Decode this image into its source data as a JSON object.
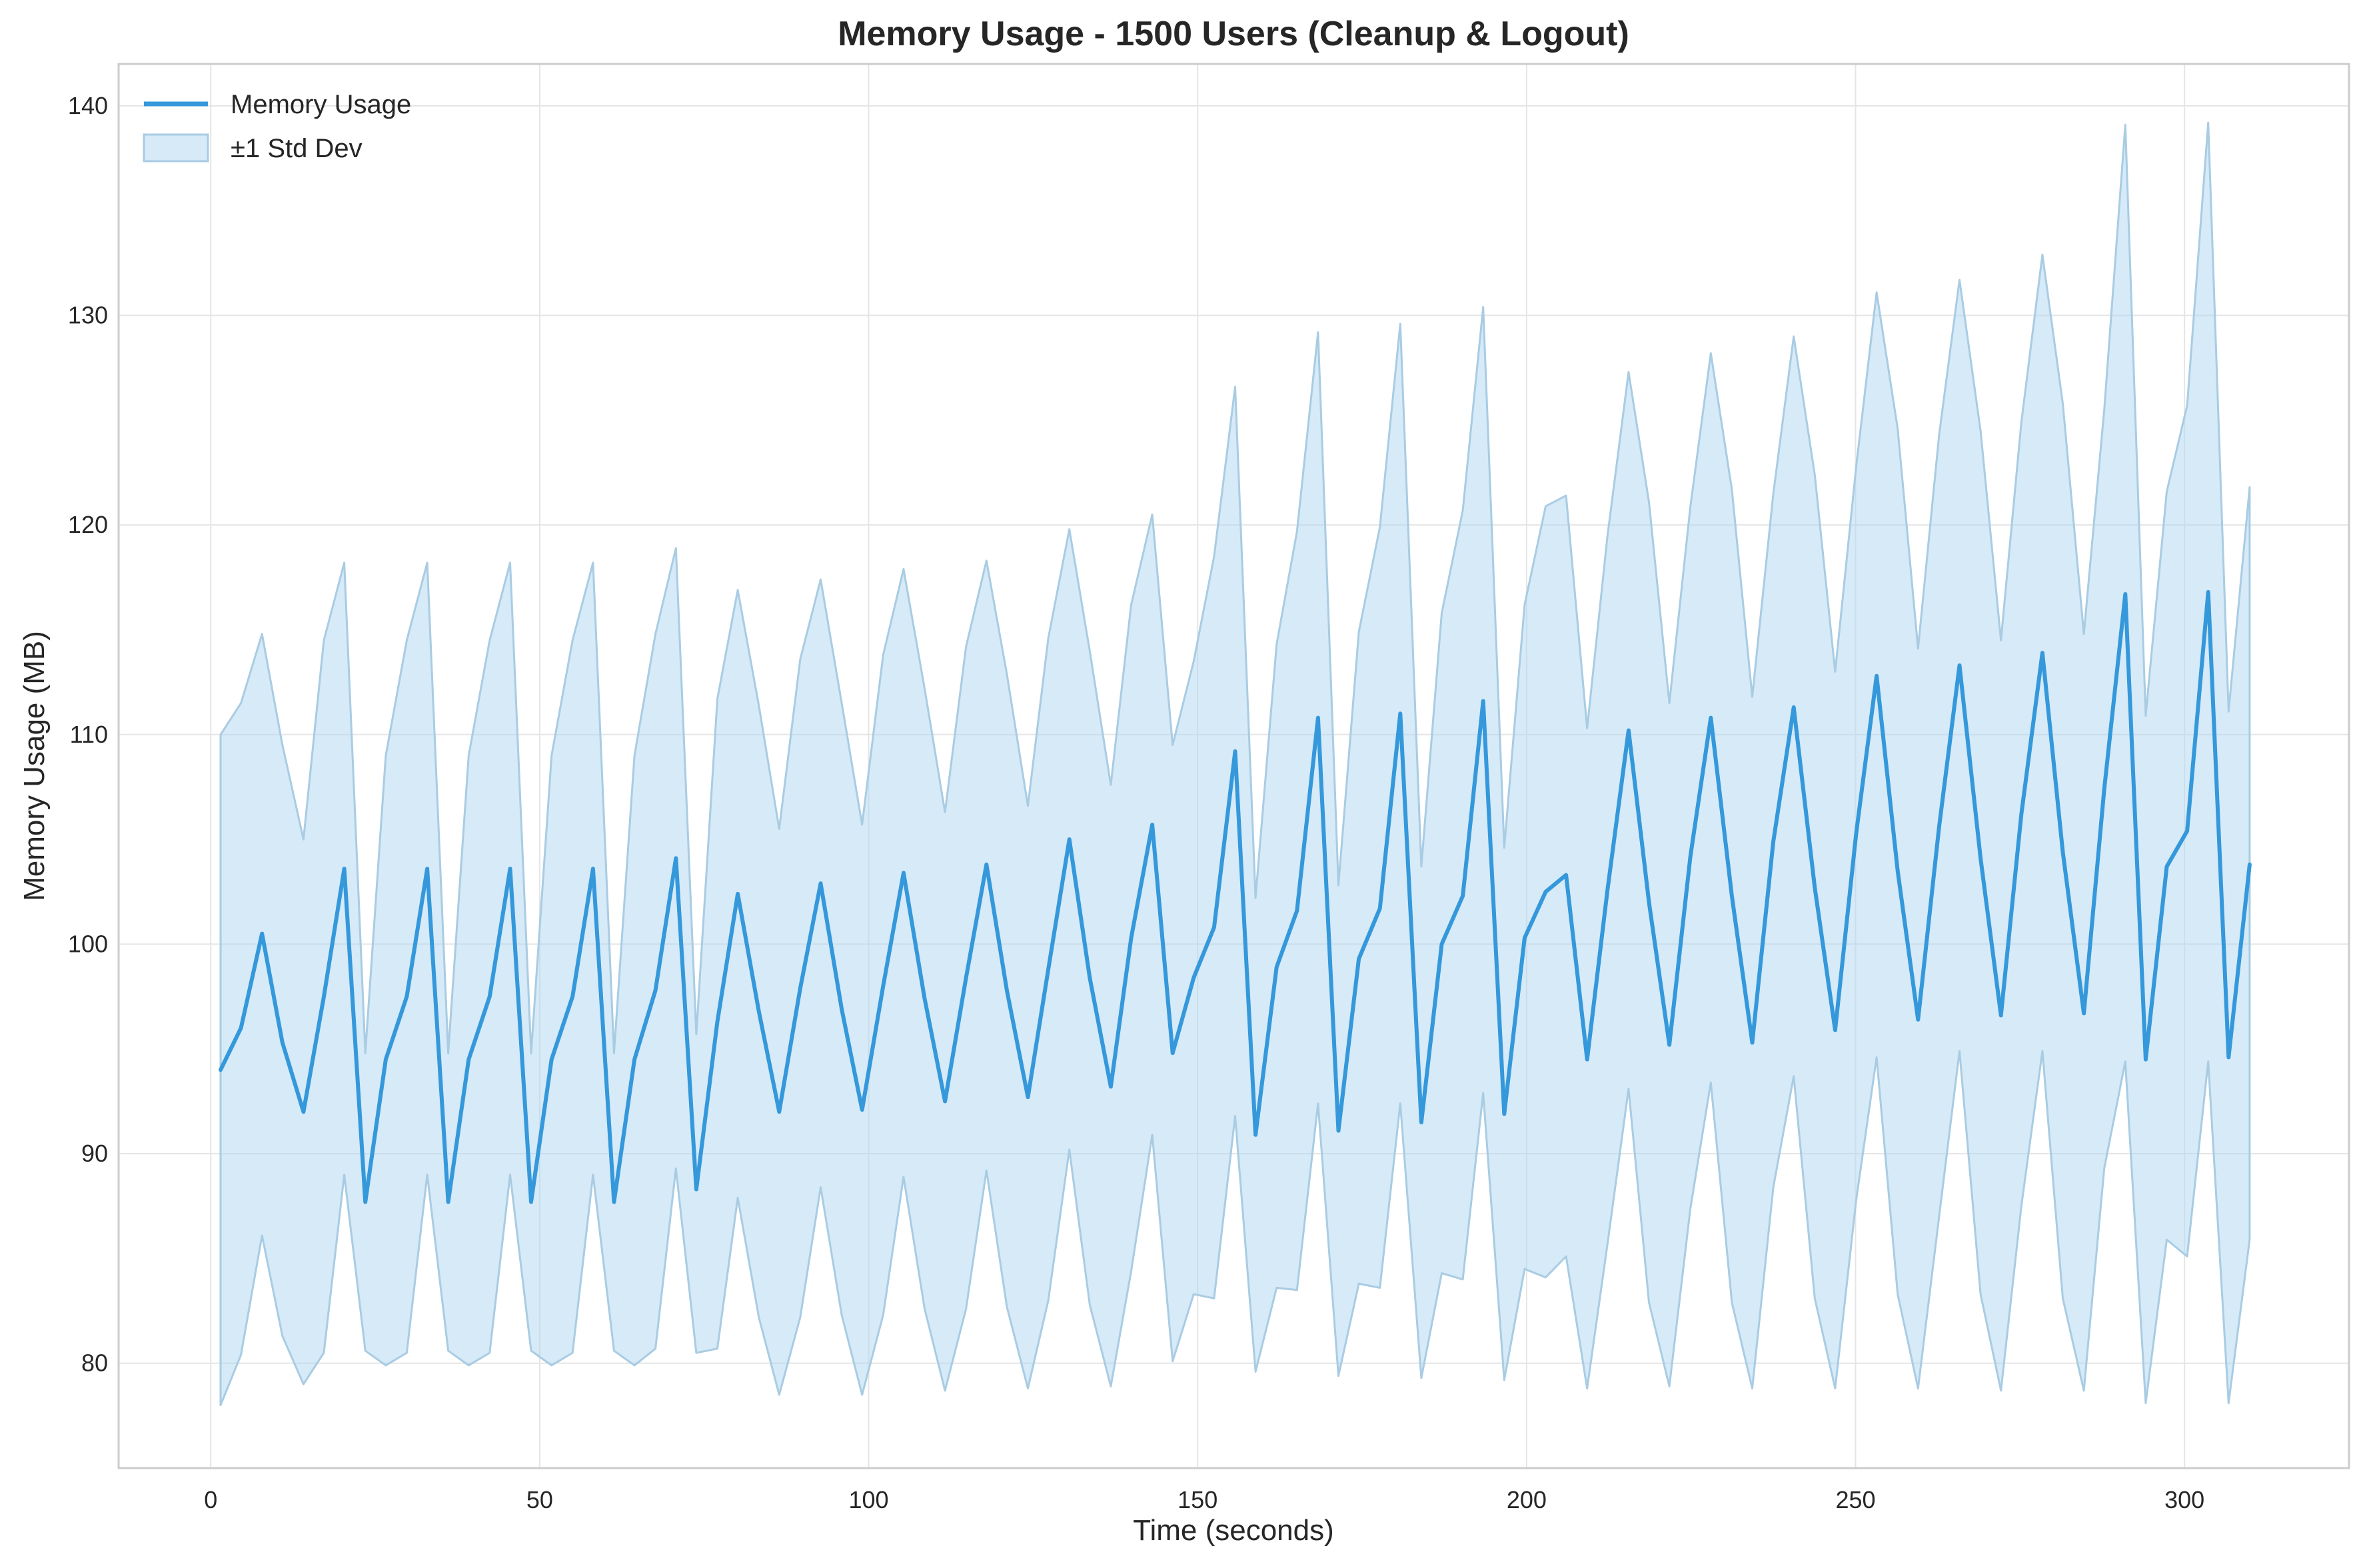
{
  "chart_data": {
    "type": "line",
    "title": "Memory Usage - 1500 Users (Cleanup & Logout)",
    "xlabel": "Time (seconds)",
    "ylabel": "Memory Usage (MB)",
    "xlim": [
      -14,
      325
    ],
    "ylim": [
      75,
      142
    ],
    "xticks": [
      0,
      50,
      100,
      150,
      200,
      250,
      300
    ],
    "yticks": [
      80,
      90,
      100,
      110,
      120,
      130,
      140
    ],
    "grid": true,
    "legend_position": "top-left",
    "colors": {
      "line": "#3498db",
      "band_fill": "#aed6f1",
      "band_edge": "#a9cce3",
      "grid": "#e5e5e5",
      "frame": "#cccccc"
    },
    "series": [
      {
        "name": "Memory Usage",
        "kind": "line",
        "x": [
          1.5,
          4.6,
          7.8,
          10.9,
          14.1,
          17.2,
          20.3,
          23.5,
          26.6,
          29.8,
          32.9,
          36.1,
          39.2,
          42.4,
          45.5,
          48.7,
          51.8,
          55.0,
          58.1,
          61.3,
          64.4,
          67.6,
          70.7,
          73.8,
          77.0,
          80.1,
          83.3,
          86.4,
          89.6,
          92.7,
          95.9,
          99.0,
          102.2,
          105.3,
          108.5,
          111.6,
          114.8,
          117.9,
          121.0,
          124.2,
          127.3,
          130.5,
          133.6,
          136.8,
          139.9,
          143.1,
          146.2,
          149.4,
          152.5,
          155.7,
          158.8,
          162.0,
          165.1,
          168.3,
          171.4,
          174.5,
          177.7,
          180.8,
          184.0,
          187.1,
          190.3,
          193.4,
          196.6,
          199.7,
          202.9,
          206.0,
          209.2,
          212.3,
          215.5,
          218.6,
          221.7,
          224.9,
          228.0,
          231.2,
          234.3,
          237.5,
          240.6,
          243.8,
          246.9,
          250.1,
          253.2,
          256.4,
          259.5,
          262.7,
          265.8,
          269.0,
          272.1,
          275.2,
          278.4,
          281.5,
          284.7,
          287.8,
          291.0,
          294.1,
          297.3,
          300.4,
          303.6,
          306.7,
          309.9
        ],
        "y": [
          94.0,
          96.0,
          100.5,
          95.3,
          92.0,
          97.5,
          103.6,
          87.7,
          94.5,
          97.5,
          103.6,
          87.7,
          94.5,
          97.5,
          103.6,
          87.7,
          94.5,
          97.5,
          103.6,
          87.7,
          94.5,
          97.8,
          104.1,
          88.3,
          96.3,
          102.4,
          96.8,
          92.0,
          97.9,
          102.9,
          96.9,
          92.1,
          98.0,
          103.4,
          97.4,
          92.5,
          98.4,
          103.8,
          97.8,
          92.7,
          98.8,
          105.0,
          98.4,
          93.2,
          100.3,
          105.7,
          94.8,
          98.4,
          100.8,
          109.2,
          90.9,
          98.9,
          101.6,
          110.8,
          91.1,
          99.3,
          101.7,
          111.0,
          91.5,
          100.0,
          102.3,
          111.6,
          91.9,
          100.3,
          102.5,
          103.3,
          94.5,
          102.6,
          110.2,
          102.0,
          95.2,
          104.2,
          110.8,
          102.3,
          95.3,
          104.9,
          111.3,
          102.7,
          95.9,
          105.3,
          112.8,
          103.5,
          96.4,
          105.6,
          113.3,
          104.1,
          96.6,
          106.2,
          113.9,
          104.4,
          96.7,
          107.4,
          116.7,
          94.5,
          103.7,
          105.4,
          116.8,
          94.6,
          103.8
        ]
      },
      {
        "name": "±1 Std Dev",
        "kind": "band",
        "upper": [
          110.0,
          111.5,
          114.8,
          109.5,
          105.0,
          114.5,
          118.2,
          94.8,
          109.0,
          114.5,
          118.2,
          94.8,
          109.0,
          114.5,
          118.2,
          94.8,
          109.0,
          114.5,
          118.2,
          94.8,
          109.0,
          114.8,
          118.9,
          95.7,
          111.7,
          116.9,
          111.4,
          105.5,
          113.6,
          117.4,
          111.5,
          105.7,
          113.8,
          117.9,
          112.2,
          106.3,
          114.2,
          118.3,
          112.9,
          106.6,
          114.6,
          119.8,
          114.0,
          107.6,
          116.2,
          120.5,
          109.5,
          113.5,
          118.5,
          126.6,
          102.2,
          114.3,
          119.7,
          129.2,
          102.8,
          114.9,
          119.9,
          129.6,
          103.7,
          115.8,
          120.7,
          130.4,
          104.6,
          116.2,
          120.9,
          121.4,
          110.3,
          119.5,
          127.3,
          121.1,
          111.5,
          120.9,
          128.2,
          121.7,
          111.8,
          121.5,
          129.0,
          122.4,
          113.0,
          122.8,
          131.1,
          124.6,
          114.1,
          124.3,
          131.7,
          124.5,
          114.5,
          124.9,
          132.9,
          125.8,
          114.8,
          125.5,
          139.1,
          110.9,
          121.6,
          125.7,
          139.2,
          111.1,
          121.8
        ],
        "lower": [
          78.0,
          80.4,
          86.1,
          81.3,
          79.0,
          80.5,
          89.0,
          80.6,
          79.9,
          80.5,
          89.0,
          80.6,
          79.9,
          80.5,
          89.0,
          80.6,
          79.9,
          80.5,
          89.0,
          80.6,
          79.9,
          80.7,
          89.3,
          80.5,
          80.7,
          87.9,
          82.2,
          78.5,
          82.2,
          88.4,
          82.3,
          78.5,
          82.3,
          88.9,
          82.6,
          78.7,
          82.6,
          89.2,
          82.7,
          78.8,
          83.0,
          90.2,
          82.8,
          78.9,
          84.4,
          90.9,
          80.1,
          83.3,
          83.1,
          91.8,
          79.6,
          83.6,
          83.5,
          92.4,
          79.4,
          83.8,
          83.6,
          92.4,
          79.3,
          84.3,
          84.0,
          92.9,
          79.2,
          84.5,
          84.1,
          85.1,
          78.8,
          85.7,
          93.1,
          82.9,
          78.9,
          87.4,
          93.4,
          82.9,
          78.8,
          88.4,
          93.7,
          83.1,
          78.8,
          87.8,
          94.6,
          83.3,
          78.8,
          87.0,
          94.9,
          83.3,
          78.7,
          87.5,
          94.9,
          83.1,
          78.7,
          89.3,
          94.4,
          78.1,
          85.9,
          85.1,
          94.4,
          78.1,
          85.9
        ]
      }
    ]
  }
}
